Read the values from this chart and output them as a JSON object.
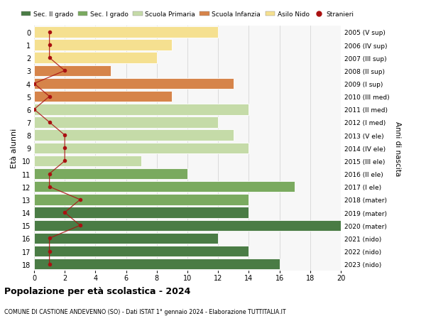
{
  "ages": [
    0,
    1,
    2,
    3,
    4,
    5,
    6,
    7,
    8,
    9,
    10,
    11,
    12,
    13,
    14,
    15,
    16,
    17,
    18
  ],
  "right_labels": [
    "2023 (nido)",
    "2022 (nido)",
    "2021 (nido)",
    "2020 (mater)",
    "2019 (mater)",
    "2018 (mater)",
    "2017 (I ele)",
    "2016 (II ele)",
    "2015 (III ele)",
    "2014 (IV ele)",
    "2013 (V ele)",
    "2012 (I med)",
    "2011 (II med)",
    "2010 (III med)",
    "2009 (I sup)",
    "2008 (II sup)",
    "2007 (III sup)",
    "2006 (IV sup)",
    "2005 (V sup)"
  ],
  "bar_values": [
    12,
    9,
    8,
    5,
    13,
    9,
    14,
    12,
    13,
    14,
    7,
    10,
    17,
    14,
    14,
    20,
    12,
    14,
    16
  ],
  "bar_colors": [
    "#f5e090",
    "#f5e090",
    "#f5e090",
    "#d6844a",
    "#d6844a",
    "#d6844a",
    "#c5dba8",
    "#c5dba8",
    "#c5dba8",
    "#c5dba8",
    "#c5dba8",
    "#7aaa5f",
    "#7aaa5f",
    "#7aaa5f",
    "#4a7c45",
    "#4a7c45",
    "#4a7c45",
    "#4a7c45",
    "#4a7c45"
  ],
  "stranieri_values": [
    1,
    1,
    1,
    2,
    0,
    1,
    0,
    1,
    2,
    2,
    2,
    1,
    1,
    3,
    2,
    3,
    1,
    1,
    1
  ],
  "legend_labels": [
    "Sec. II grado",
    "Sec. I grado",
    "Scuola Primaria",
    "Scuola Infanzia",
    "Asilo Nido",
    "Stranieri"
  ],
  "legend_colors": [
    "#4a7c45",
    "#7aaa5f",
    "#c5dba8",
    "#d6844a",
    "#f5e090",
    "#aa1111"
  ],
  "ylabel_left": "Età alunni",
  "ylabel_right": "Anni di nascita",
  "title_bold": "Popolazione per età scolastica - 2024",
  "subtitle": "COMUNE DI CASTIONE ANDEVENNO (SO) - Dati ISTAT 1° gennaio 2024 - Elaborazione TUTTITALIA.IT",
  "xlim": [
    0,
    20
  ],
  "xticks": [
    0,
    2,
    4,
    6,
    8,
    10,
    12,
    14,
    16,
    18,
    20
  ],
  "bg_color": "#ffffff",
  "plot_bg": "#f7f7f7",
  "grid_color": "#d0d0d0",
  "bar_edge_color": "#ffffff",
  "stranieri_color": "#aa1111",
  "stranieri_line_color": "#aa1111"
}
